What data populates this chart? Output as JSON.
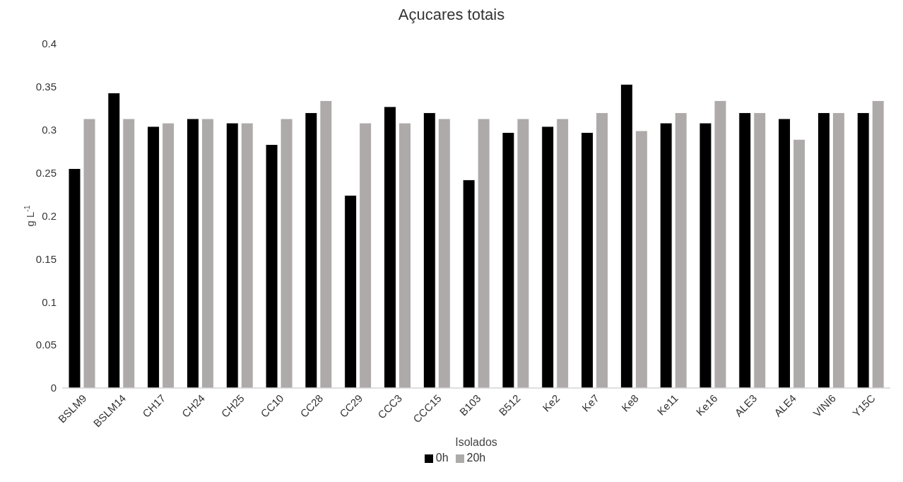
{
  "chart_data": {
    "type": "bar",
    "title": "Açucares totais",
    "xlabel": "Isolados",
    "ylabel": "g L$^{-1}$",
    "categories": [
      "BSLM9",
      "BSLM14",
      "CH17",
      "CH24",
      "CH25",
      "CC10",
      "CC28",
      "CC29",
      "CCC3",
      "CCC15",
      "B103",
      "B512",
      "Ke2",
      "Ke7",
      "Ke8",
      "Ke11",
      "Ke16",
      "ALE3",
      "ALE4",
      "VINI6",
      "Y15C"
    ],
    "series": [
      {
        "name": "0h",
        "color": "#000000",
        "values": [
          0.255,
          0.343,
          0.304,
          0.313,
          0.308,
          0.283,
          0.32,
          0.224,
          0.327,
          0.32,
          0.242,
          0.297,
          0.304,
          0.297,
          0.353,
          0.308,
          0.308,
          0.32,
          0.313,
          0.32,
          0.32
        ]
      },
      {
        "name": "20h",
        "color": "#aeaaaa",
        "values": [
          0.313,
          0.313,
          0.308,
          0.313,
          0.308,
          0.313,
          0.334,
          0.308,
          0.308,
          0.313,
          0.313,
          0.313,
          0.313,
          0.32,
          0.299,
          0.32,
          0.334,
          0.32,
          0.289,
          0.32,
          0.334
        ]
      }
    ],
    "ylim": [
      0,
      0.4
    ],
    "yticks": [
      0,
      0.05,
      0.1,
      0.15,
      0.2,
      0.25,
      0.3,
      0.35,
      0.4
    ],
    "grid": false,
    "legend": "bottom"
  }
}
